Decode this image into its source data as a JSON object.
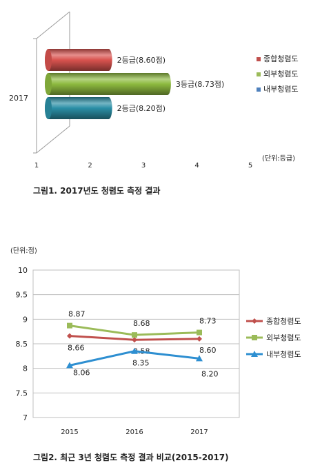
{
  "chart_data": [
    {
      "type": "bar",
      "orientation": "horizontal",
      "style": "3d-cylinder",
      "category": "2017",
      "xticks": [
        "1",
        "2",
        "3",
        "4",
        "5"
      ],
      "xlim": [
        1,
        5
      ],
      "unit": "(단위:등급)",
      "caption": "그림1. 2017년도 청렴도 측정 결과",
      "series": [
        {
          "name": "종합청렴도",
          "value": 2.35,
          "label": "2등급(8.60점)",
          "color": "#d9534f"
        },
        {
          "name": "외부청렴도",
          "value": 3.45,
          "label": "3등급(8.73점)",
          "color": "#8dba3f"
        },
        {
          "name": "내부청렴도",
          "value": 2.35,
          "label": "2등급(8.20점)",
          "color": "#2b8fa6"
        }
      ],
      "legend": [
        {
          "name": "종합청렴도",
          "color": "#c0504d"
        },
        {
          "name": "외부청렴도",
          "color": "#9bbb59"
        },
        {
          "name": "내부청렴도",
          "color": "#4f81bd"
        }
      ],
      "legend_position": "right"
    },
    {
      "type": "line",
      "categories": [
        "2015",
        "2016",
        "2017"
      ],
      "yticks": [
        "10",
        "9.5",
        "9",
        "8.5",
        "8",
        "7.5",
        "7"
      ],
      "ylim": [
        7,
        10
      ],
      "unit": "(단위:점)",
      "caption": "그림2. 최근 3년 청렴도 측정 결과 비교(2015-2017)",
      "series": [
        {
          "name": "종합청렴도",
          "values": [
            8.66,
            8.58,
            8.6
          ],
          "labels": [
            "8.66",
            "8.58",
            "8.60"
          ],
          "color": "#c0504d",
          "marker": "diamond"
        },
        {
          "name": "외부청렴도",
          "values": [
            8.87,
            8.68,
            8.73
          ],
          "labels": [
            "8.87",
            "8.68",
            "8.73"
          ],
          "color": "#9bbb59",
          "marker": "square"
        },
        {
          "name": "내부청렴도",
          "values": [
            8.06,
            8.35,
            8.2
          ],
          "labels": [
            "8.06",
            "8.35",
            "8.20"
          ],
          "color": "#2e8fd1",
          "marker": "triangle"
        }
      ],
      "legend_position": "right"
    }
  ]
}
